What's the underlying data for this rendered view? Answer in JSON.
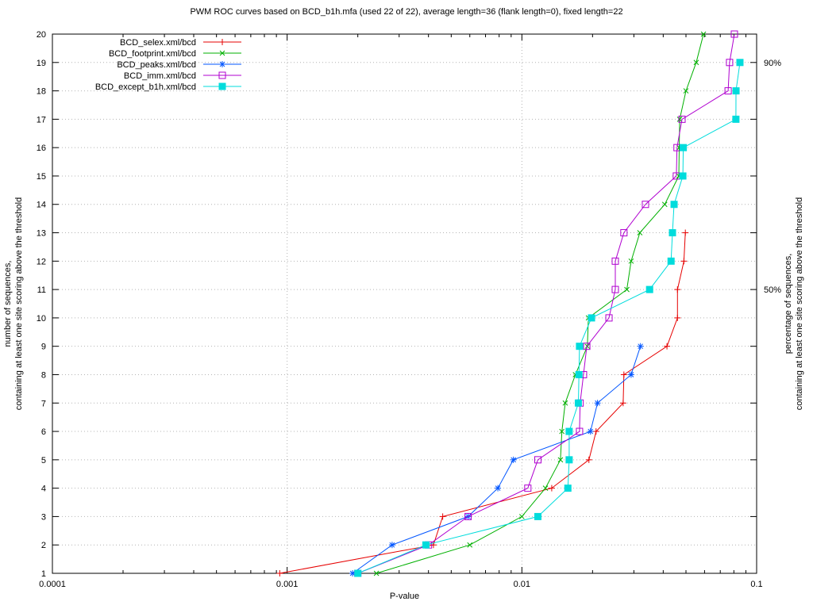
{
  "title": "PWM ROC curves based on BCD_b1h.mfa (used 22 of 22), average length=36 (flank length=0), fixed length=22",
  "y_axis_label_lines": [
    "number of sequences,",
    "containing at least one site scoring above the threshold"
  ],
  "y2_axis_label_lines": [
    "percentage of sequences,",
    "containing at least one site scoring above the threshold"
  ],
  "chart_data": {
    "type": "line",
    "title": "PWM ROC curves based on BCD_b1h.mfa (used 22 of 22), average length=36 (flank length=0), fixed length=22",
    "xlabel": "P-value",
    "x_scale": "log",
    "xlim": [
      0.0001,
      0.1
    ],
    "ylim": [
      1,
      20
    ],
    "grid": true,
    "legend_position": "top-left-inside",
    "x_ticks": [
      {
        "v": 0.0001,
        "label": "0.0001"
      },
      {
        "v": 0.001,
        "label": "0.001"
      },
      {
        "v": 0.01,
        "label": "0.01"
      },
      {
        "v": 0.1,
        "label": "0.1"
      }
    ],
    "y_ticks": [
      1,
      2,
      3,
      4,
      5,
      6,
      7,
      8,
      9,
      10,
      11,
      12,
      13,
      14,
      15,
      16,
      17,
      18,
      19,
      20
    ],
    "y2_ticks": [
      {
        "pct": 50,
        "label": "50%"
      },
      {
        "pct": 90,
        "label": "90%"
      }
    ],
    "series": [
      {
        "name": "BCD_selex.xml/bcd",
        "color": "#e60000",
        "marker": "plus",
        "points": [
          [
            0.00093,
            1
          ],
          [
            0.0042,
            2
          ],
          [
            0.0046,
            3
          ],
          [
            0.0134,
            4
          ],
          [
            0.0193,
            5
          ],
          [
            0.0207,
            6
          ],
          [
            0.027,
            7
          ],
          [
            0.0272,
            8
          ],
          [
            0.0415,
            9
          ],
          [
            0.046,
            10
          ],
          [
            0.046,
            11
          ],
          [
            0.049,
            12
          ],
          [
            0.0497,
            13
          ]
        ]
      },
      {
        "name": "BCD_footprint.xml/bcd",
        "color": "#00b000",
        "marker": "cross",
        "points": [
          [
            0.0024,
            1
          ],
          [
            0.006,
            2
          ],
          [
            0.01,
            3
          ],
          [
            0.0126,
            4
          ],
          [
            0.0146,
            5
          ],
          [
            0.0148,
            6
          ],
          [
            0.0153,
            7
          ],
          [
            0.0169,
            8
          ],
          [
            0.019,
            9
          ],
          [
            0.0192,
            10
          ],
          [
            0.028,
            11
          ],
          [
            0.0292,
            12
          ],
          [
            0.0318,
            13
          ],
          [
            0.0406,
            14
          ],
          [
            0.0466,
            15
          ],
          [
            0.0468,
            16
          ],
          [
            0.047,
            17
          ],
          [
            0.05,
            18
          ],
          [
            0.0553,
            19
          ],
          [
            0.0594,
            20
          ]
        ]
      },
      {
        "name": "BCD_peaks.xml/bcd",
        "color": "#0055ff",
        "marker": "asterisk",
        "points": [
          [
            0.0019,
            1
          ],
          [
            0.0028,
            2
          ],
          [
            0.0059,
            3
          ],
          [
            0.0079,
            4
          ],
          [
            0.0092,
            5
          ],
          [
            0.0196,
            6
          ],
          [
            0.021,
            7
          ],
          [
            0.0292,
            8
          ],
          [
            0.032,
            9
          ]
        ]
      },
      {
        "name": "BCD_imm.xml/bcd",
        "color": "#b000d0",
        "marker": "square-open",
        "points": [
          [
            0.002,
            1
          ],
          [
            0.004,
            2
          ],
          [
            0.0059,
            3
          ],
          [
            0.0106,
            4
          ],
          [
            0.0117,
            5
          ],
          [
            0.0176,
            6
          ],
          [
            0.0177,
            7
          ],
          [
            0.0183,
            8
          ],
          [
            0.0189,
            9
          ],
          [
            0.0235,
            10
          ],
          [
            0.025,
            11
          ],
          [
            0.025,
            12
          ],
          [
            0.0272,
            13
          ],
          [
            0.0336,
            14
          ],
          [
            0.0455,
            15
          ],
          [
            0.0458,
            16
          ],
          [
            0.0481,
            17
          ],
          [
            0.0756,
            18
          ],
          [
            0.0767,
            19
          ],
          [
            0.0804,
            20
          ]
        ]
      },
      {
        "name": "BCD_except_b1h.xml/bcd",
        "color": "#00dcdc",
        "marker": "square-filled",
        "points": [
          [
            0.002,
            1
          ],
          [
            0.0039,
            2
          ],
          [
            0.0117,
            3
          ],
          [
            0.0157,
            4
          ],
          [
            0.0159,
            5
          ],
          [
            0.0159,
            6
          ],
          [
            0.0174,
            7
          ],
          [
            0.0175,
            8
          ],
          [
            0.0176,
            9
          ],
          [
            0.0198,
            10
          ],
          [
            0.035,
            11
          ],
          [
            0.0432,
            12
          ],
          [
            0.0438,
            13
          ],
          [
            0.0445,
            14
          ],
          [
            0.0485,
            15
          ],
          [
            0.0487,
            16
          ],
          [
            0.0816,
            17
          ],
          [
            0.0817,
            18
          ],
          [
            0.0849,
            19
          ]
        ]
      }
    ]
  }
}
